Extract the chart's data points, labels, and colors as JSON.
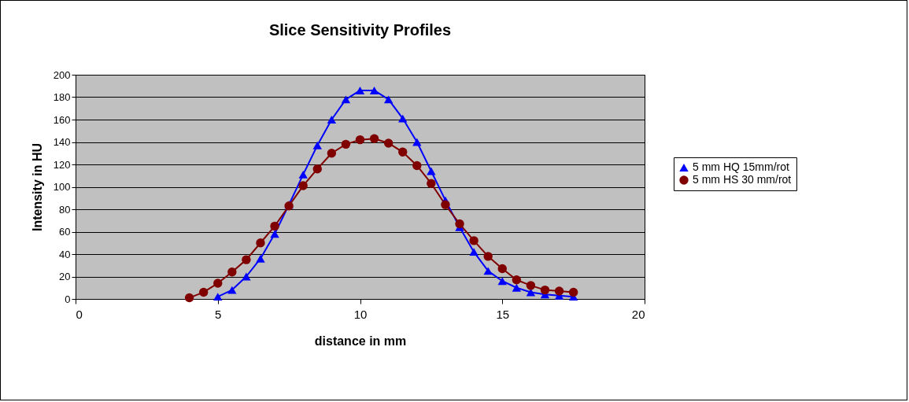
{
  "chart_data": {
    "type": "line",
    "title": "Slice Sensitivity Profiles",
    "xlabel": "distance in mm",
    "ylabel": "Intensity in HU",
    "xlim": [
      0,
      20
    ],
    "xticks": [
      0,
      5,
      10,
      15,
      20
    ],
    "ylim": [
      0,
      200
    ],
    "yticks": [
      0,
      20,
      40,
      60,
      80,
      100,
      120,
      140,
      160,
      180,
      200
    ],
    "grid": "y",
    "legend": "right",
    "line_style": "solid",
    "series": [
      {
        "name": "5 mm HQ 15mm/rot",
        "color": "#0000ff",
        "marker": "triangle",
        "x": [
          5,
          5.5,
          6,
          6.5,
          7,
          7.5,
          8,
          8.5,
          9,
          9.5,
          10,
          10.5,
          11,
          11.5,
          12,
          12.5,
          13,
          13.5,
          14,
          14.5,
          15,
          15.5,
          16,
          16.5,
          17,
          17.5
        ],
        "values": [
          2,
          8,
          20,
          36,
          58,
          84,
          111,
          137,
          160,
          178,
          186,
          186,
          178,
          161,
          140,
          114,
          88,
          64,
          42,
          25,
          16,
          10,
          6,
          4,
          3,
          2
        ]
      },
      {
        "name": "5 mm HS 30 mm/rot",
        "color": "#800000",
        "marker": "circle",
        "x": [
          4,
          4.5,
          5,
          5.5,
          6,
          6.5,
          7,
          7.5,
          8,
          8.5,
          9,
          9.5,
          10,
          10.5,
          11,
          11.5,
          12,
          12.5,
          13,
          13.5,
          14,
          14.5,
          15,
          15.5,
          16,
          16.5,
          17,
          17.5
        ],
        "values": [
          1,
          6,
          14,
          24,
          35,
          50,
          65,
          83,
          101,
          116,
          130,
          138,
          142,
          143,
          139,
          131,
          119,
          103,
          84,
          67,
          52,
          38,
          27,
          17,
          12,
          8,
          7,
          6
        ]
      }
    ]
  }
}
